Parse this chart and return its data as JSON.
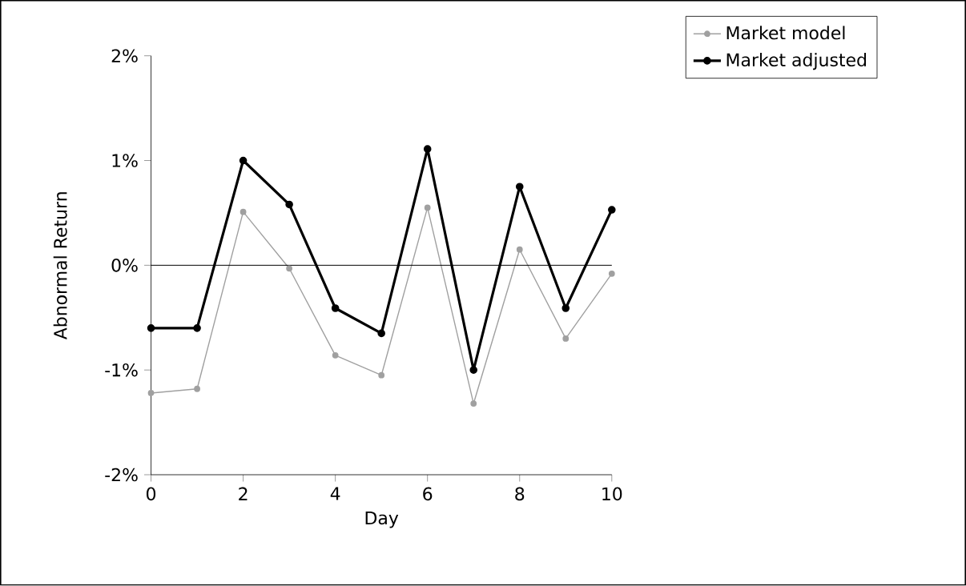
{
  "chart_data": {
    "type": "line",
    "xlabel": "Day",
    "ylabel": "Abnormal Return",
    "x": [
      0,
      1,
      2,
      3,
      4,
      5,
      6,
      7,
      8,
      9,
      10
    ],
    "series": [
      {
        "name": "Market model",
        "color": "#a0a0a0",
        "values": [
          -1.22,
          -1.18,
          0.51,
          -0.03,
          -0.86,
          -1.05,
          0.55,
          -1.32,
          0.15,
          -0.7,
          -0.08
        ]
      },
      {
        "name": "Market adjusted",
        "color": "#000000",
        "values": [
          -0.6,
          -0.6,
          1.0,
          0.58,
          -0.41,
          -0.65,
          1.11,
          -1.0,
          0.75,
          -0.41,
          0.53
        ]
      }
    ],
    "xlim": [
      0,
      10
    ],
    "ylim": [
      -2,
      2
    ],
    "xticks": [
      0,
      2,
      4,
      6,
      8,
      10
    ],
    "yticks": [
      {
        "value": -2,
        "label": "-2%"
      },
      {
        "value": -1,
        "label": "-1%"
      },
      {
        "value": 0,
        "label": "0%"
      },
      {
        "value": 1,
        "label": "1%"
      },
      {
        "value": 2,
        "label": "2%"
      }
    ],
    "ref_lines": [
      {
        "axis": "y",
        "value": 0,
        "color": "#000000"
      }
    ],
    "grid": false,
    "legend": "top right",
    "marker": "circle",
    "line_style": "solid"
  }
}
